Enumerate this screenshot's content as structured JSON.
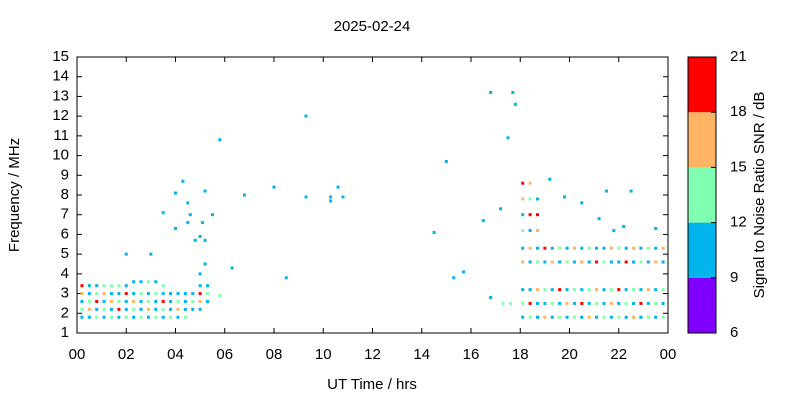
{
  "chart_data": {
    "type": "scatter",
    "title": "2025-02-24",
    "xlabel": "UT Time / hrs",
    "ylabel": "Frequency / MHz",
    "xlim": [
      0,
      24
    ],
    "ylim": [
      1,
      15
    ],
    "xticks": [
      {
        "value": 0,
        "label": "00"
      },
      {
        "value": 2,
        "label": "02"
      },
      {
        "value": 4,
        "label": "04"
      },
      {
        "value": 6,
        "label": "06"
      },
      {
        "value": 8,
        "label": "08"
      },
      10,
      12,
      14,
      16,
      18,
      20,
      22,
      {
        "value": 24,
        "label": "00"
      }
    ],
    "yticks": [
      1,
      2,
      3,
      4,
      5,
      6,
      7,
      8,
      9,
      10,
      11,
      12,
      13,
      14,
      15
    ],
    "colorbar": {
      "label": "Signal to Noise Ratio SNR / dB",
      "lim": [
        6,
        21
      ],
      "ticks": [
        6,
        9,
        12,
        15,
        18,
        21
      ],
      "colors": [
        "#8000ff",
        "#00b4ec",
        "#80ffb0",
        "#ffb464",
        "#ff0000"
      ]
    },
    "points": [
      [
        0.2,
        1.8,
        10
      ],
      [
        0.2,
        2.2,
        13
      ],
      [
        0.2,
        2.6,
        10
      ],
      [
        0.2,
        3.0,
        16
      ],
      [
        0.2,
        3.4,
        19
      ],
      [
        0.5,
        1.8,
        10
      ],
      [
        0.5,
        2.2,
        16
      ],
      [
        0.5,
        2.6,
        13
      ],
      [
        0.5,
        3.0,
        10
      ],
      [
        0.5,
        3.4,
        10
      ],
      [
        0.8,
        1.8,
        13
      ],
      [
        0.8,
        2.2,
        10
      ],
      [
        0.8,
        2.6,
        19
      ],
      [
        0.8,
        3.0,
        13
      ],
      [
        0.8,
        3.4,
        10
      ],
      [
        1.1,
        1.8,
        10
      ],
      [
        1.1,
        2.2,
        13
      ],
      [
        1.1,
        2.6,
        10
      ],
      [
        1.1,
        3.0,
        16
      ],
      [
        1.1,
        3.4,
        13
      ],
      [
        1.4,
        1.8,
        13
      ],
      [
        1.4,
        2.2,
        10
      ],
      [
        1.4,
        2.6,
        16
      ],
      [
        1.4,
        3.0,
        10
      ],
      [
        1.4,
        3.4,
        13
      ],
      [
        1.7,
        1.8,
        10
      ],
      [
        1.7,
        2.2,
        19
      ],
      [
        1.7,
        2.6,
        13
      ],
      [
        1.7,
        3.0,
        10
      ],
      [
        1.7,
        3.4,
        13
      ],
      [
        2.0,
        1.8,
        13
      ],
      [
        2.0,
        2.2,
        10
      ],
      [
        2.0,
        2.6,
        10
      ],
      [
        2.0,
        3.0,
        19
      ],
      [
        2.0,
        3.4,
        10
      ],
      [
        2.3,
        1.8,
        10
      ],
      [
        2.3,
        2.2,
        13
      ],
      [
        2.3,
        2.6,
        16
      ],
      [
        2.3,
        3.0,
        10
      ],
      [
        2.3,
        3.6,
        10
      ],
      [
        2.6,
        1.8,
        13
      ],
      [
        2.6,
        2.2,
        10
      ],
      [
        2.6,
        2.6,
        10
      ],
      [
        2.6,
        3.0,
        13
      ],
      [
        2.6,
        3.6,
        10
      ],
      [
        2.9,
        1.8,
        10
      ],
      [
        2.9,
        2.2,
        16
      ],
      [
        2.9,
        2.6,
        13
      ],
      [
        2.9,
        3.0,
        10
      ],
      [
        2.9,
        3.6,
        13
      ],
      [
        3.2,
        1.8,
        13
      ],
      [
        3.2,
        2.2,
        10
      ],
      [
        3.2,
        2.6,
        10
      ],
      [
        3.2,
        3.0,
        13
      ],
      [
        3.2,
        3.6,
        10
      ],
      [
        3.5,
        1.8,
        10
      ],
      [
        3.5,
        2.2,
        13
      ],
      [
        3.5,
        2.6,
        19
      ],
      [
        3.5,
        3.0,
        10
      ],
      [
        3.5,
        3.4,
        13
      ],
      [
        3.8,
        1.8,
        13
      ],
      [
        3.8,
        2.2,
        10
      ],
      [
        3.8,
        2.6,
        10
      ],
      [
        3.8,
        3.0,
        10
      ],
      [
        4.1,
        1.8,
        10
      ],
      [
        4.1,
        2.2,
        16
      ],
      [
        4.1,
        2.6,
        13
      ],
      [
        4.1,
        3.0,
        10
      ],
      [
        4.4,
        1.8,
        13
      ],
      [
        4.4,
        2.2,
        10
      ],
      [
        4.4,
        2.6,
        10
      ],
      [
        4.4,
        3.0,
        10
      ],
      [
        4.7,
        2.2,
        10
      ],
      [
        4.7,
        2.6,
        13
      ],
      [
        4.7,
        3.0,
        10
      ],
      [
        5.0,
        2.2,
        10
      ],
      [
        5.0,
        2.6,
        16
      ],
      [
        5.0,
        3.0,
        19
      ],
      [
        5.0,
        3.4,
        10
      ],
      [
        5.0,
        4.0,
        10
      ],
      [
        5.3,
        2.6,
        10
      ],
      [
        5.3,
        3.0,
        13
      ],
      [
        5.3,
        3.4,
        10
      ],
      [
        5.8,
        2.9,
        13
      ],
      [
        4.3,
        8.7,
        10
      ],
      [
        4.0,
        8.1,
        10
      ],
      [
        3.5,
        7.1,
        10
      ],
      [
        4.5,
        7.6,
        10
      ],
      [
        4.6,
        7.0,
        10
      ],
      [
        4.0,
        6.3,
        10
      ],
      [
        4.5,
        6.6,
        10
      ],
      [
        4.8,
        5.7,
        10
      ],
      [
        5.0,
        5.9,
        10
      ],
      [
        5.2,
        8.2,
        10
      ],
      [
        5.5,
        7.0,
        10
      ],
      [
        5.1,
        6.6,
        10
      ],
      [
        5.2,
        5.7,
        10
      ],
      [
        5.2,
        4.5,
        10
      ],
      [
        5.8,
        10.8,
        10
      ],
      [
        6.3,
        4.3,
        10
      ],
      [
        6.8,
        8.0,
        10
      ],
      [
        8.0,
        8.4,
        10
      ],
      [
        8.5,
        3.8,
        10
      ],
      [
        9.3,
        12.0,
        10
      ],
      [
        9.3,
        7.9,
        10
      ],
      [
        10.3,
        7.9,
        10
      ],
      [
        10.3,
        7.7,
        10
      ],
      [
        10.6,
        8.4,
        10
      ],
      [
        10.8,
        7.9,
        10
      ],
      [
        2.0,
        5.0,
        10
      ],
      [
        3.0,
        5.0,
        10
      ],
      [
        14.5,
        6.1,
        10
      ],
      [
        15.0,
        9.7,
        10
      ],
      [
        15.3,
        3.8,
        10
      ],
      [
        15.7,
        4.1,
        10
      ],
      [
        16.5,
        6.7,
        10
      ],
      [
        16.8,
        13.2,
        10
      ],
      [
        17.7,
        13.2,
        10
      ],
      [
        17.8,
        12.6,
        10
      ],
      [
        17.5,
        10.9,
        10
      ],
      [
        17.2,
        7.3,
        10
      ],
      [
        16.8,
        2.8,
        10
      ],
      [
        17.3,
        2.5,
        13
      ],
      [
        17.6,
        2.5,
        13
      ],
      [
        19.2,
        8.8,
        10
      ],
      [
        19.8,
        7.9,
        10
      ],
      [
        20.5,
        7.6,
        10
      ],
      [
        21.5,
        8.2,
        10
      ],
      [
        21.2,
        6.8,
        10
      ],
      [
        21.8,
        6.2,
        10
      ],
      [
        22.2,
        6.4,
        10
      ],
      [
        23.5,
        6.3,
        10
      ],
      [
        22.5,
        8.2,
        10
      ],
      [
        18.1,
        6.2,
        13
      ],
      [
        18.1,
        7.0,
        10
      ],
      [
        18.1,
        7.8,
        16
      ],
      [
        18.1,
        8.6,
        19
      ],
      [
        18.4,
        6.2,
        10
      ],
      [
        18.4,
        7.0,
        19
      ],
      [
        18.4,
        7.8,
        13
      ],
      [
        18.4,
        8.6,
        16
      ],
      [
        18.7,
        6.2,
        16
      ],
      [
        18.7,
        7.0,
        19
      ],
      [
        18.7,
        7.8,
        10
      ],
      [
        18.1,
        1.8,
        10
      ],
      [
        18.1,
        2.5,
        13
      ],
      [
        18.1,
        3.2,
        10
      ],
      [
        18.1,
        4.6,
        16
      ],
      [
        18.1,
        5.3,
        10
      ],
      [
        18.4,
        1.8,
        13
      ],
      [
        18.4,
        2.5,
        19
      ],
      [
        18.4,
        3.2,
        10
      ],
      [
        18.4,
        4.6,
        10
      ],
      [
        18.4,
        5.3,
        16
      ],
      [
        18.7,
        1.8,
        10
      ],
      [
        18.7,
        2.5,
        10
      ],
      [
        18.7,
        3.2,
        16
      ],
      [
        18.7,
        4.6,
        13
      ],
      [
        18.7,
        5.3,
        10
      ],
      [
        19.0,
        1.8,
        16
      ],
      [
        19.0,
        2.5,
        10
      ],
      [
        19.0,
        3.2,
        13
      ],
      [
        19.0,
        4.6,
        10
      ],
      [
        19.0,
        5.3,
        19
      ],
      [
        19.3,
        1.8,
        10
      ],
      [
        19.3,
        2.5,
        13
      ],
      [
        19.3,
        3.2,
        10
      ],
      [
        19.3,
        4.6,
        16
      ],
      [
        19.3,
        5.3,
        10
      ],
      [
        19.6,
        1.8,
        13
      ],
      [
        19.6,
        2.5,
        10
      ],
      [
        19.6,
        3.2,
        19
      ],
      [
        19.6,
        4.6,
        10
      ],
      [
        19.6,
        5.3,
        13
      ],
      [
        19.9,
        1.8,
        10
      ],
      [
        19.9,
        2.5,
        16
      ],
      [
        19.9,
        3.2,
        10
      ],
      [
        19.9,
        4.6,
        13
      ],
      [
        19.9,
        5.3,
        10
      ],
      [
        20.2,
        1.8,
        13
      ],
      [
        20.2,
        2.5,
        10
      ],
      [
        20.2,
        3.2,
        13
      ],
      [
        20.2,
        4.6,
        10
      ],
      [
        20.2,
        5.3,
        16
      ],
      [
        20.5,
        1.8,
        10
      ],
      [
        20.5,
        2.5,
        19
      ],
      [
        20.5,
        3.2,
        10
      ],
      [
        20.5,
        4.6,
        16
      ],
      [
        20.5,
        5.3,
        10
      ],
      [
        20.8,
        1.8,
        16
      ],
      [
        20.8,
        2.5,
        10
      ],
      [
        20.8,
        3.2,
        13
      ],
      [
        20.8,
        4.6,
        10
      ],
      [
        20.8,
        5.3,
        13
      ],
      [
        21.1,
        1.8,
        10
      ],
      [
        21.1,
        2.5,
        13
      ],
      [
        21.1,
        3.2,
        16
      ],
      [
        21.1,
        4.6,
        19
      ],
      [
        21.1,
        5.3,
        10
      ],
      [
        21.4,
        1.8,
        13
      ],
      [
        21.4,
        2.5,
        10
      ],
      [
        21.4,
        3.2,
        10
      ],
      [
        21.4,
        4.6,
        13
      ],
      [
        21.4,
        5.3,
        10
      ],
      [
        21.7,
        1.8,
        10
      ],
      [
        21.7,
        2.5,
        16
      ],
      [
        21.7,
        3.2,
        13
      ],
      [
        21.7,
        4.6,
        10
      ],
      [
        21.7,
        5.3,
        16
      ],
      [
        22.0,
        1.8,
        13
      ],
      [
        22.0,
        2.5,
        10
      ],
      [
        22.0,
        3.2,
        19
      ],
      [
        22.0,
        4.6,
        10
      ],
      [
        22.0,
        5.3,
        13
      ],
      [
        22.3,
        1.8,
        10
      ],
      [
        22.3,
        2.5,
        13
      ],
      [
        22.3,
        3.2,
        10
      ],
      [
        22.3,
        4.6,
        19
      ],
      [
        22.3,
        5.3,
        10
      ],
      [
        22.6,
        1.8,
        16
      ],
      [
        22.6,
        2.5,
        10
      ],
      [
        22.6,
        3.2,
        13
      ],
      [
        22.6,
        4.6,
        10
      ],
      [
        22.6,
        5.3,
        16
      ],
      [
        22.9,
        1.8,
        10
      ],
      [
        22.9,
        2.5,
        19
      ],
      [
        22.9,
        3.2,
        10
      ],
      [
        22.9,
        4.6,
        13
      ],
      [
        22.9,
        5.3,
        10
      ],
      [
        23.2,
        1.8,
        13
      ],
      [
        23.2,
        2.5,
        10
      ],
      [
        23.2,
        3.2,
        16
      ],
      [
        23.2,
        4.6,
        10
      ],
      [
        23.2,
        5.3,
        13
      ],
      [
        23.5,
        1.8,
        10
      ],
      [
        23.5,
        2.5,
        13
      ],
      [
        23.5,
        3.2,
        10
      ],
      [
        23.5,
        4.6,
        16
      ],
      [
        23.5,
        5.3,
        10
      ],
      [
        23.8,
        1.8,
        13
      ],
      [
        23.8,
        2.5,
        10
      ],
      [
        23.8,
        3.2,
        13
      ],
      [
        23.8,
        4.6,
        10
      ],
      [
        23.8,
        5.3,
        16
      ]
    ]
  }
}
